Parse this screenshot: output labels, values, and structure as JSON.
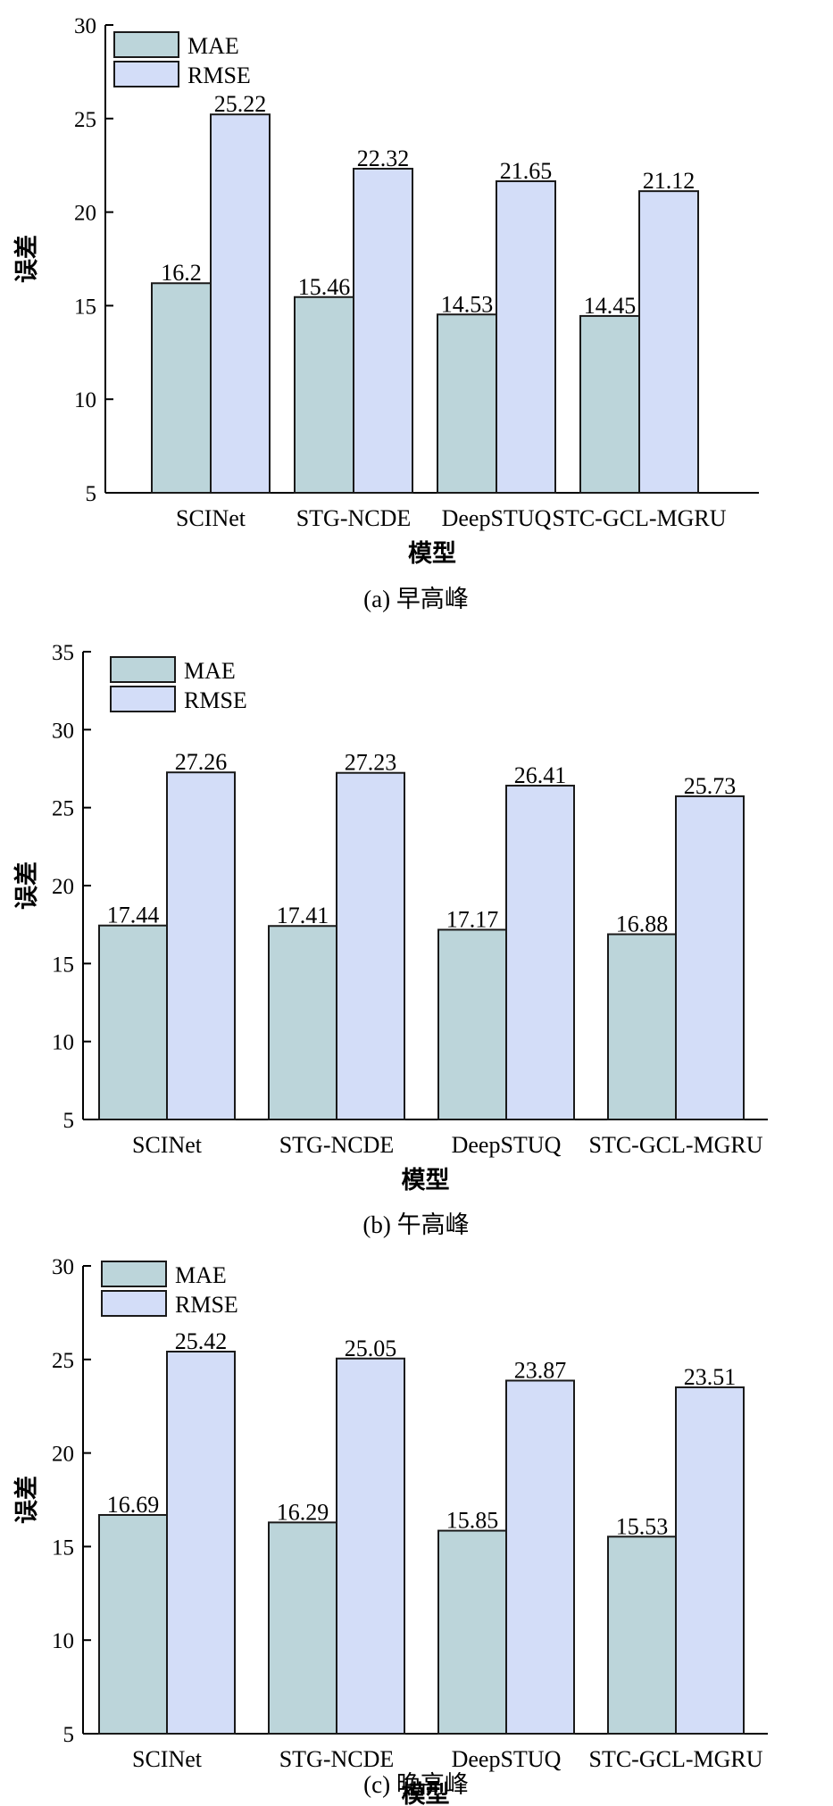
{
  "colors": {
    "mae": "#bcd5da",
    "rmse": "#d3ddf8",
    "stroke": "#1a1a1a"
  },
  "chart_data": [
    {
      "type": "bar",
      "caption": "(a) 早高峰",
      "xlabel": "模型",
      "ylabel": "误差",
      "categories": [
        "SCINet",
        "STG-NCDE",
        "DeepSTUQ",
        "STC-GCL-MGRU"
      ],
      "series": [
        {
          "name": "MAE",
          "values": [
            16.2,
            15.46,
            14.53,
            14.45
          ],
          "labels": [
            "16.2",
            "15.46",
            "14.53",
            "14.45"
          ]
        },
        {
          "name": "RMSE",
          "values": [
            25.22,
            22.32,
            21.65,
            21.12
          ],
          "labels": [
            "25.22",
            "22.32",
            "21.65",
            "21.12"
          ]
        }
      ],
      "ylim": [
        5,
        30
      ],
      "yticks": [
        5,
        10,
        15,
        20,
        25,
        30
      ],
      "legend": "top-left",
      "grid": false
    },
    {
      "type": "bar",
      "caption": "(b) 午高峰",
      "xlabel": "模型",
      "ylabel": "误差",
      "categories": [
        "SCINet",
        "STG-NCDE",
        "DeepSTUQ",
        "STC-GCL-MGRU"
      ],
      "series": [
        {
          "name": "MAE",
          "values": [
            17.44,
            17.41,
            17.17,
            16.88
          ],
          "labels": [
            "17.44",
            "17.41",
            "17.17",
            "16.88"
          ]
        },
        {
          "name": "RMSE",
          "values": [
            27.26,
            27.23,
            26.41,
            25.73
          ],
          "labels": [
            "27.26",
            "27.23",
            "26.41",
            "25.73"
          ]
        }
      ],
      "ylim": [
        5,
        35
      ],
      "yticks": [
        5,
        10,
        15,
        20,
        25,
        30,
        35
      ],
      "legend": "top-left",
      "grid": false
    },
    {
      "type": "bar",
      "caption": "(c) 晚高峰",
      "xlabel": "模型",
      "ylabel": "误差",
      "categories": [
        "SCINet",
        "STG-NCDE",
        "DeepSTUQ",
        "STC-GCL-MGRU"
      ],
      "series": [
        {
          "name": "MAE",
          "values": [
            16.69,
            16.29,
            15.85,
            15.53
          ],
          "labels": [
            "16.69",
            "16.29",
            "15.85",
            "15.53"
          ]
        },
        {
          "name": "RMSE",
          "values": [
            25.42,
            25.05,
            23.87,
            23.51
          ],
          "labels": [
            "25.42",
            "25.05",
            "23.87",
            "23.51"
          ]
        }
      ],
      "ylim": [
        5,
        30
      ],
      "yticks": [
        5,
        10,
        15,
        20,
        25,
        30
      ],
      "legend": "top-left",
      "grid": false
    }
  ]
}
